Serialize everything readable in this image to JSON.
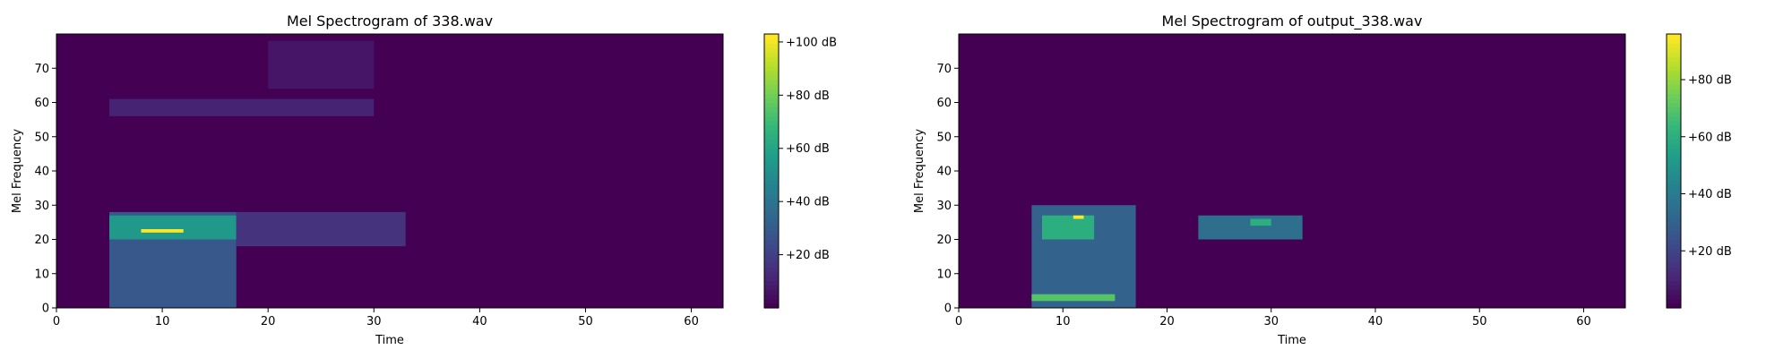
{
  "chart_data": [
    {
      "type": "heatmap",
      "title": "Mel Spectrogram of 338.wav",
      "xlabel": "Time",
      "ylabel": "Mel Frequency",
      "xlim": [
        0,
        63
      ],
      "ylim": [
        0,
        80
      ],
      "xticks": [
        0,
        10,
        20,
        30,
        40,
        50,
        60
      ],
      "yticks": [
        0,
        10,
        20,
        30,
        40,
        50,
        60,
        70
      ],
      "colorscale": "viridis",
      "colorbar": {
        "min": 0,
        "max": 103,
        "ticks": [
          20,
          40,
          60,
          80,
          100
        ],
        "tick_labels": [
          "+20 dB",
          "+40 dB",
          "+60 dB",
          "+80 dB",
          "+100 dB"
        ]
      },
      "energy_regions": [
        {
          "t": [
            5,
            17
          ],
          "mel": [
            0,
            28
          ],
          "level_db": 28
        },
        {
          "t": [
            5,
            17
          ],
          "mel": [
            20,
            27
          ],
          "level_db": 55
        },
        {
          "t": [
            8,
            12
          ],
          "mel": [
            22,
            23
          ],
          "level_db": 103
        },
        {
          "t": [
            17,
            33
          ],
          "mel": [
            18,
            28
          ],
          "level_db": 15
        },
        {
          "t": [
            5,
            30
          ],
          "mel": [
            56,
            61
          ],
          "level_db": 10
        },
        {
          "t": [
            20,
            30
          ],
          "mel": [
            64,
            78
          ],
          "level_db": 6
        }
      ]
    },
    {
      "type": "heatmap",
      "title": "Mel Spectrogram of output_338.wav",
      "xlabel": "Time",
      "ylabel": "Mel Frequency",
      "xlim": [
        0,
        64
      ],
      "ylim": [
        0,
        80
      ],
      "xticks": [
        0,
        10,
        20,
        30,
        40,
        50,
        60
      ],
      "yticks": [
        0,
        10,
        20,
        30,
        40,
        50,
        60,
        70
      ],
      "colorscale": "viridis",
      "colorbar": {
        "min": 0,
        "max": 96,
        "ticks": [
          20,
          40,
          60,
          80
        ],
        "tick_labels": [
          "+20 dB",
          "+40 dB",
          "+60 dB",
          "+80 dB"
        ]
      },
      "energy_regions": [
        {
          "t": [
            7,
            17
          ],
          "mel": [
            0,
            30
          ],
          "level_db": 30
        },
        {
          "t": [
            8,
            13
          ],
          "mel": [
            20,
            27
          ],
          "level_db": 60
        },
        {
          "t": [
            11,
            12
          ],
          "mel": [
            26,
            27
          ],
          "level_db": 96
        },
        {
          "t": [
            7,
            15
          ],
          "mel": [
            2,
            4
          ],
          "level_db": 70
        },
        {
          "t": [
            23,
            33
          ],
          "mel": [
            20,
            27
          ],
          "level_db": 35
        },
        {
          "t": [
            28,
            30
          ],
          "mel": [
            24,
            26
          ],
          "level_db": 60
        }
      ]
    }
  ]
}
